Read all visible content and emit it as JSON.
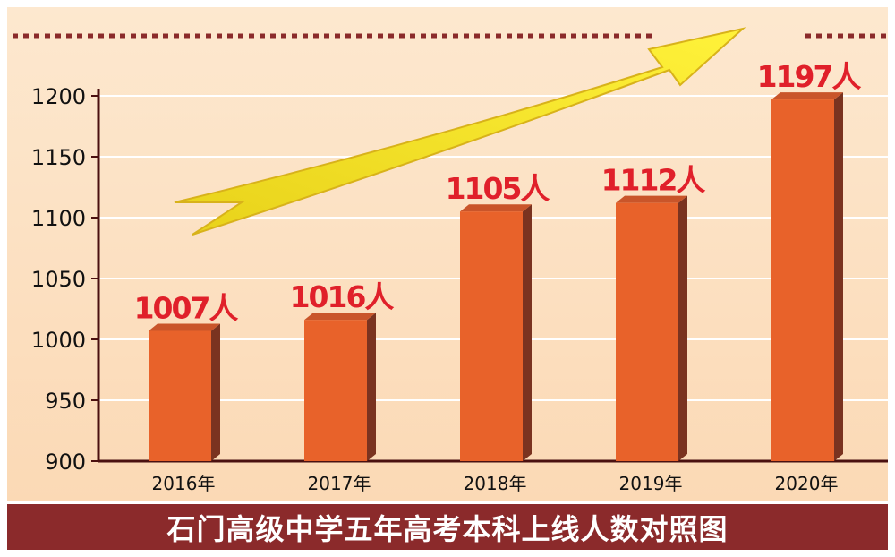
{
  "caption": "石门高级中学五年高考本科上线人数对照图",
  "colors": {
    "background": "#fde4c6",
    "bar_front": "#e8622a",
    "bar_side": "#7a3320",
    "bar_top": "#c9552a",
    "label": "#e0202a",
    "caption_bg": "#8b2a2b",
    "arrow": "#f1e21a",
    "dots": "#8b2a2b"
  },
  "chart_data": {
    "type": "bar",
    "title": "石门高级中学五年高考本科上线人数对照图",
    "xlabel": "",
    "ylabel": "",
    "categories": [
      "2016年",
      "2017年",
      "2018年",
      "2019年",
      "2020年"
    ],
    "values": [
      1007,
      1016,
      1105,
      1112,
      1197
    ],
    "data_labels": [
      "1007人",
      "1016人",
      "1105人",
      "1112人",
      "1197人"
    ],
    "ylim": [
      900,
      1200
    ],
    "yticks": [
      900,
      950,
      1000,
      1050,
      1100,
      1150,
      1200
    ],
    "grid": true,
    "legend": "none"
  }
}
